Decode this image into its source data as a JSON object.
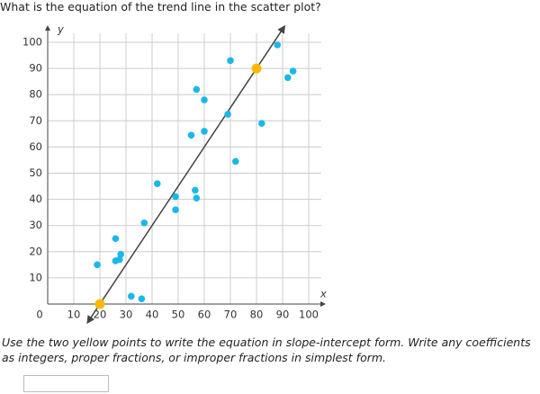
{
  "question": "What is the equation of the trend line in the scatter plot?",
  "instructions": "Use the two yellow points to write the equation in slope-intercept form. Write any coefficients as integers, proper fractions, or improper fractions in simplest form.",
  "chart_data": {
    "type": "scatter",
    "xlabel": "x",
    "ylabel": "y",
    "xlim": [
      0,
      100
    ],
    "ylim": [
      0,
      100
    ],
    "xticks": [
      0,
      10,
      20,
      30,
      40,
      50,
      60,
      70,
      80,
      90,
      100
    ],
    "yticks": [
      10,
      20,
      30,
      40,
      50,
      60,
      70,
      80,
      90,
      100
    ],
    "grid": true,
    "line_color": "#444444",
    "series": [
      {
        "color": "#1ab8ea",
        "x": [
          19,
          26,
          28,
          27.5,
          26,
          32,
          36,
          37,
          42,
          49,
          49,
          56.5,
          57,
          55,
          57,
          60,
          60,
          69,
          70,
          72,
          82,
          88,
          92,
          94
        ],
        "values": [
          15,
          25,
          19,
          17,
          16.5,
          3,
          2,
          31,
          46,
          41,
          36,
          43.5,
          40.5,
          64.5,
          82,
          78,
          66,
          72.5,
          93,
          54.5,
          69,
          99,
          86.5,
          89
        ]
      },
      {
        "color": "#ffb800",
        "x": [
          20,
          80
        ],
        "values": [
          0,
          90
        ]
      }
    ]
  }
}
